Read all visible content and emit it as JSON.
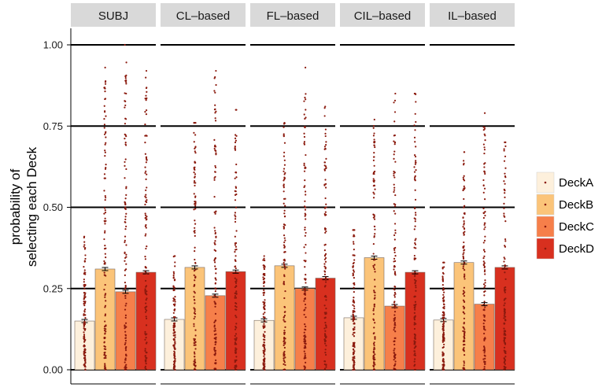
{
  "chart_data": {
    "type": "bar",
    "ylabel_lines": [
      "probability of",
      "selecting each Deck"
    ],
    "ylim": [
      0,
      1.05
    ],
    "yticks": [
      0,
      0.25,
      0.5,
      0.75,
      1.0
    ],
    "ytick_labels": [
      "0.00",
      "0.25",
      "0.50",
      "0.75",
      "1.00"
    ],
    "panels": [
      "SUBJ",
      "CL–based",
      "FL–based",
      "CIL–based",
      "IL–based"
    ],
    "series": [
      {
        "name": "DeckA",
        "color": "#fdf0dc",
        "values": [
          0.15,
          0.155,
          0.152,
          0.16,
          0.153
        ]
      },
      {
        "name": "DeckB",
        "color": "#fbc479",
        "values": [
          0.31,
          0.315,
          0.32,
          0.345,
          0.33
        ]
      },
      {
        "name": "DeckC",
        "color": "#f67f4a",
        "values": [
          0.24,
          0.228,
          0.25,
          0.196,
          0.202
        ]
      },
      {
        "name": "DeckD",
        "color": "#d8301f",
        "values": [
          0.3,
          0.302,
          0.282,
          0.3,
          0.315
        ]
      }
    ],
    "point_max": [
      [
        0.41,
        0.93,
        1.0,
        0.92
      ],
      [
        0.35,
        0.76,
        0.92,
        0.8
      ],
      [
        0.35,
        0.76,
        0.93,
        0.81
      ],
      [
        0.43,
        0.77,
        0.85,
        0.85
      ],
      [
        0.33,
        0.67,
        0.79,
        0.7
      ]
    ],
    "legend_position": "right",
    "point_color": "#8b1a0e"
  }
}
